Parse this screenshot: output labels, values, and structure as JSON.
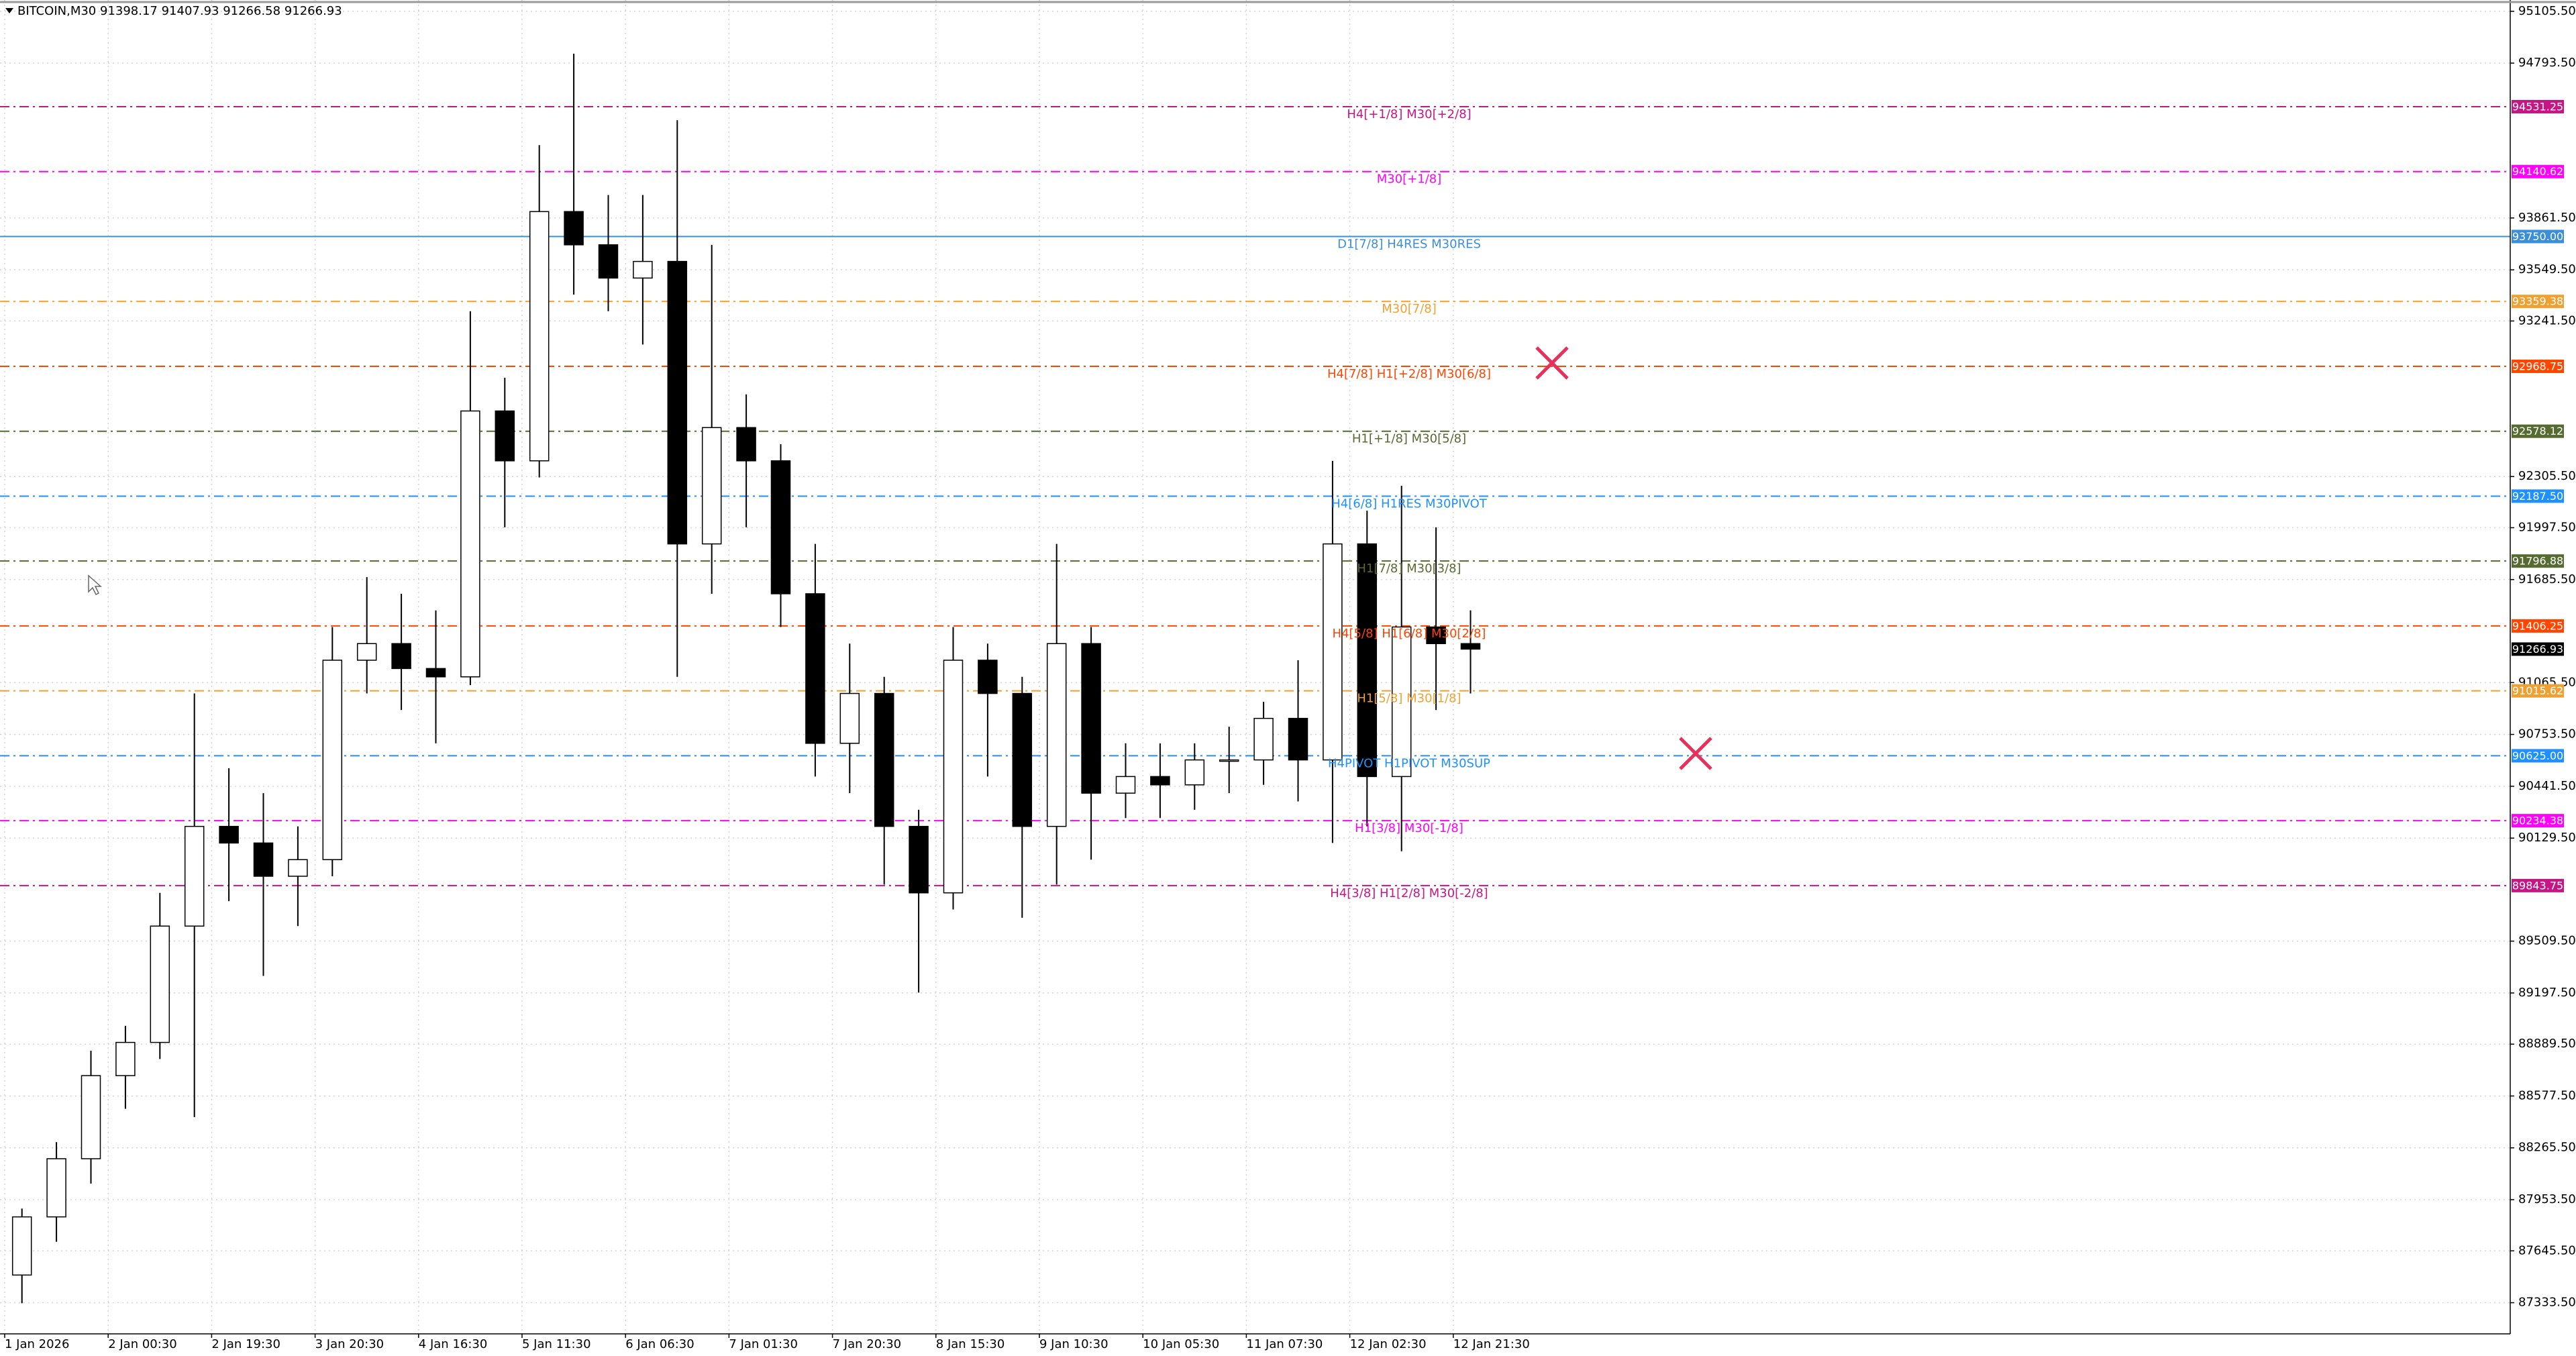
{
  "chart_data": {
    "type": "candlestick",
    "title": "BITCOIN,M30  91398.17 91407.93 91266.58 91266.93",
    "categories": [
      "1 Jan 2026",
      null,
      null,
      "2 Jan 00:30",
      null,
      null,
      "2 Jan 19:30",
      null,
      null,
      "3 Jan 20:30",
      null,
      null,
      "4 Jan 16:30",
      null,
      null,
      "5 Jan 11:30",
      null,
      null,
      "6 Jan 06:30",
      null,
      null,
      "7 Jan 01:30",
      null,
      null,
      "7 Jan 20:30",
      null,
      null,
      "8 Jan 15:30",
      null,
      null,
      "9 Jan 10:30",
      null,
      null,
      "10 Jan 05:30",
      null,
      null,
      "11 Jan 07:30",
      null,
      null,
      "12 Jan 02:30",
      null,
      null,
      "12 Jan 21:30"
    ],
    "open": [
      87500,
      87850,
      88200,
      88700,
      88900,
      89600,
      90200,
      90100,
      89900,
      90000,
      91200,
      91300,
      91150,
      91100,
      92700,
      92400,
      93900,
      93700,
      93500,
      93600,
      91900,
      92600,
      92400,
      91600,
      90700,
      91000,
      90200,
      89800,
      91200,
      91000,
      90200,
      91300,
      90400,
      90500,
      90450,
      90600,
      90600,
      90850,
      90600,
      91900,
      90500,
      91400,
      91300
    ],
    "high": [
      87900,
      88300,
      88850,
      89000,
      89800,
      91000,
      90550,
      90400,
      90200,
      91400,
      91700,
      91600,
      91500,
      93300,
      92900,
      94300,
      94850,
      94000,
      94000,
      94450,
      93700,
      92800,
      92500,
      91900,
      91300,
      91100,
      90300,
      91400,
      91300,
      91100,
      91900,
      91400,
      90700,
      90700,
      90700,
      90800,
      90950,
      91200,
      92400,
      92100,
      92250,
      92000,
      91500
    ],
    "low": [
      87330,
      87700,
      88050,
      88500,
      88800,
      88450,
      89750,
      89300,
      89600,
      89900,
      91000,
      90900,
      90700,
      91050,
      92000,
      92300,
      93400,
      93300,
      93100,
      91100,
      91600,
      92000,
      91400,
      90500,
      90400,
      89850,
      89200,
      89700,
      90500,
      89650,
      89850,
      90000,
      90250,
      90250,
      90300,
      90400,
      90450,
      90350,
      90100,
      90200,
      90050,
      90900,
      91000
    ],
    "close": [
      87850,
      88200,
      88700,
      88900,
      89600,
      90200,
      90100,
      89900,
      90000,
      91200,
      91300,
      91150,
      91100,
      92700,
      92400,
      93900,
      93700,
      93500,
      93600,
      91900,
      92600,
      92400,
      91600,
      90700,
      91000,
      90200,
      89800,
      91200,
      91000,
      90200,
      91300,
      90400,
      90500,
      90450,
      90600,
      90600,
      90850,
      90600,
      91900,
      90500,
      91400,
      91300,
      91266.93
    ],
    "up_color": "#ffffff",
    "down_color": "#000000",
    "ylim": [
      87146,
      95145
    ],
    "yticks": [
      {
        "value": 95105.5,
        "label": "95105.50"
      },
      {
        "value": 94793.5,
        "label": "94793.50"
      },
      {
        "value": 93861.5,
        "label": "93861.50"
      },
      {
        "value": 93549.5,
        "label": "93549.50"
      },
      {
        "value": 93241.5,
        "label": "93241.50"
      },
      {
        "value": 92305.5,
        "label": "92305.50"
      },
      {
        "value": 91997.5,
        "label": "91997.50"
      },
      {
        "value": 91685.5,
        "label": "91685.50"
      },
      {
        "value": 91065.5,
        "label": "91065.50"
      },
      {
        "value": 90753.5,
        "label": "90753.50"
      },
      {
        "value": 90441.5,
        "label": "90441.50"
      },
      {
        "value": 90129.5,
        "label": "90129.50"
      },
      {
        "value": 89509.5,
        "label": "89509.50"
      },
      {
        "value": 89197.5,
        "label": "89197.50"
      },
      {
        "value": 88889.5,
        "label": "88889.50"
      },
      {
        "value": 88577.5,
        "label": "88577.50"
      },
      {
        "value": 88265.5,
        "label": "88265.50"
      },
      {
        "value": 87953.5,
        "label": "87953.50"
      },
      {
        "value": 87645.5,
        "label": "87645.50"
      },
      {
        "value": 87333.5,
        "label": "87333.50"
      }
    ],
    "grid": true,
    "levels": [
      {
        "value": 94531.25,
        "value_label": "94531.25",
        "label": "H4[+1/8] M30[+2/8]",
        "color": "#c71585",
        "dashed": true
      },
      {
        "value": 94140.62,
        "value_label": "94140.62",
        "label": "M30[+1/8]",
        "color": "#ff00ff",
        "dashed": true
      },
      {
        "value": 93750,
        "value_label": "93750.00",
        "label": "D1[7/8] H4RES M30RES",
        "color": "#3a8fd8",
        "dashed": false
      },
      {
        "value": 93359.38,
        "value_label": "93359.38",
        "label": "M30[7/8]",
        "color": "#f0a030",
        "dashed": true
      },
      {
        "value": 92968.75,
        "value_label": "92968.75",
        "label": "H4[7/8] H1[+2/8] M30[6/8]",
        "color": "#ff4500",
        "dashed": true
      },
      {
        "value": 92578.12,
        "value_label": "92578.12",
        "label": "H1[+1/8] M30[5/8]",
        "color": "#556b2f",
        "dashed": true
      },
      {
        "value": 92187.5,
        "value_label": "92187.50",
        "label": "H4[6/8] H1RES M30PIVOT",
        "color": "#1e90ff",
        "dashed": true
      },
      {
        "value": 91796.88,
        "value_label": "91796.88",
        "label": "H1[7/8] M30[3/8]",
        "color": "#556b2f",
        "dashed": true
      },
      {
        "value": 91406.25,
        "value_label": "91406.25",
        "label": "H4[5/8] H1[6/8] M30[2/8]",
        "color": "#ff4500",
        "dashed": true
      },
      {
        "value": 91015.62,
        "value_label": "91015.62",
        "label": "H1[5/8] M30[1/8]",
        "color": "#f0a030",
        "dashed": true
      },
      {
        "value": 90625,
        "value_label": "90625.00",
        "label": "H4PIVOT H1PIVOT M30SUP",
        "color": "#1e90ff",
        "dashed": true
      },
      {
        "value": 90234.38,
        "value_label": "90234.38",
        "label": "H1[3/8] M30[-1/8]",
        "color": "#ff00ff",
        "dashed": true
      },
      {
        "value": 89843.75,
        "value_label": "89843.75",
        "label": "H4[3/8] H1[2/8] M30[-2/8]",
        "color": "#c71585",
        "dashed": true
      }
    ],
    "current": 91266.93
  }
}
